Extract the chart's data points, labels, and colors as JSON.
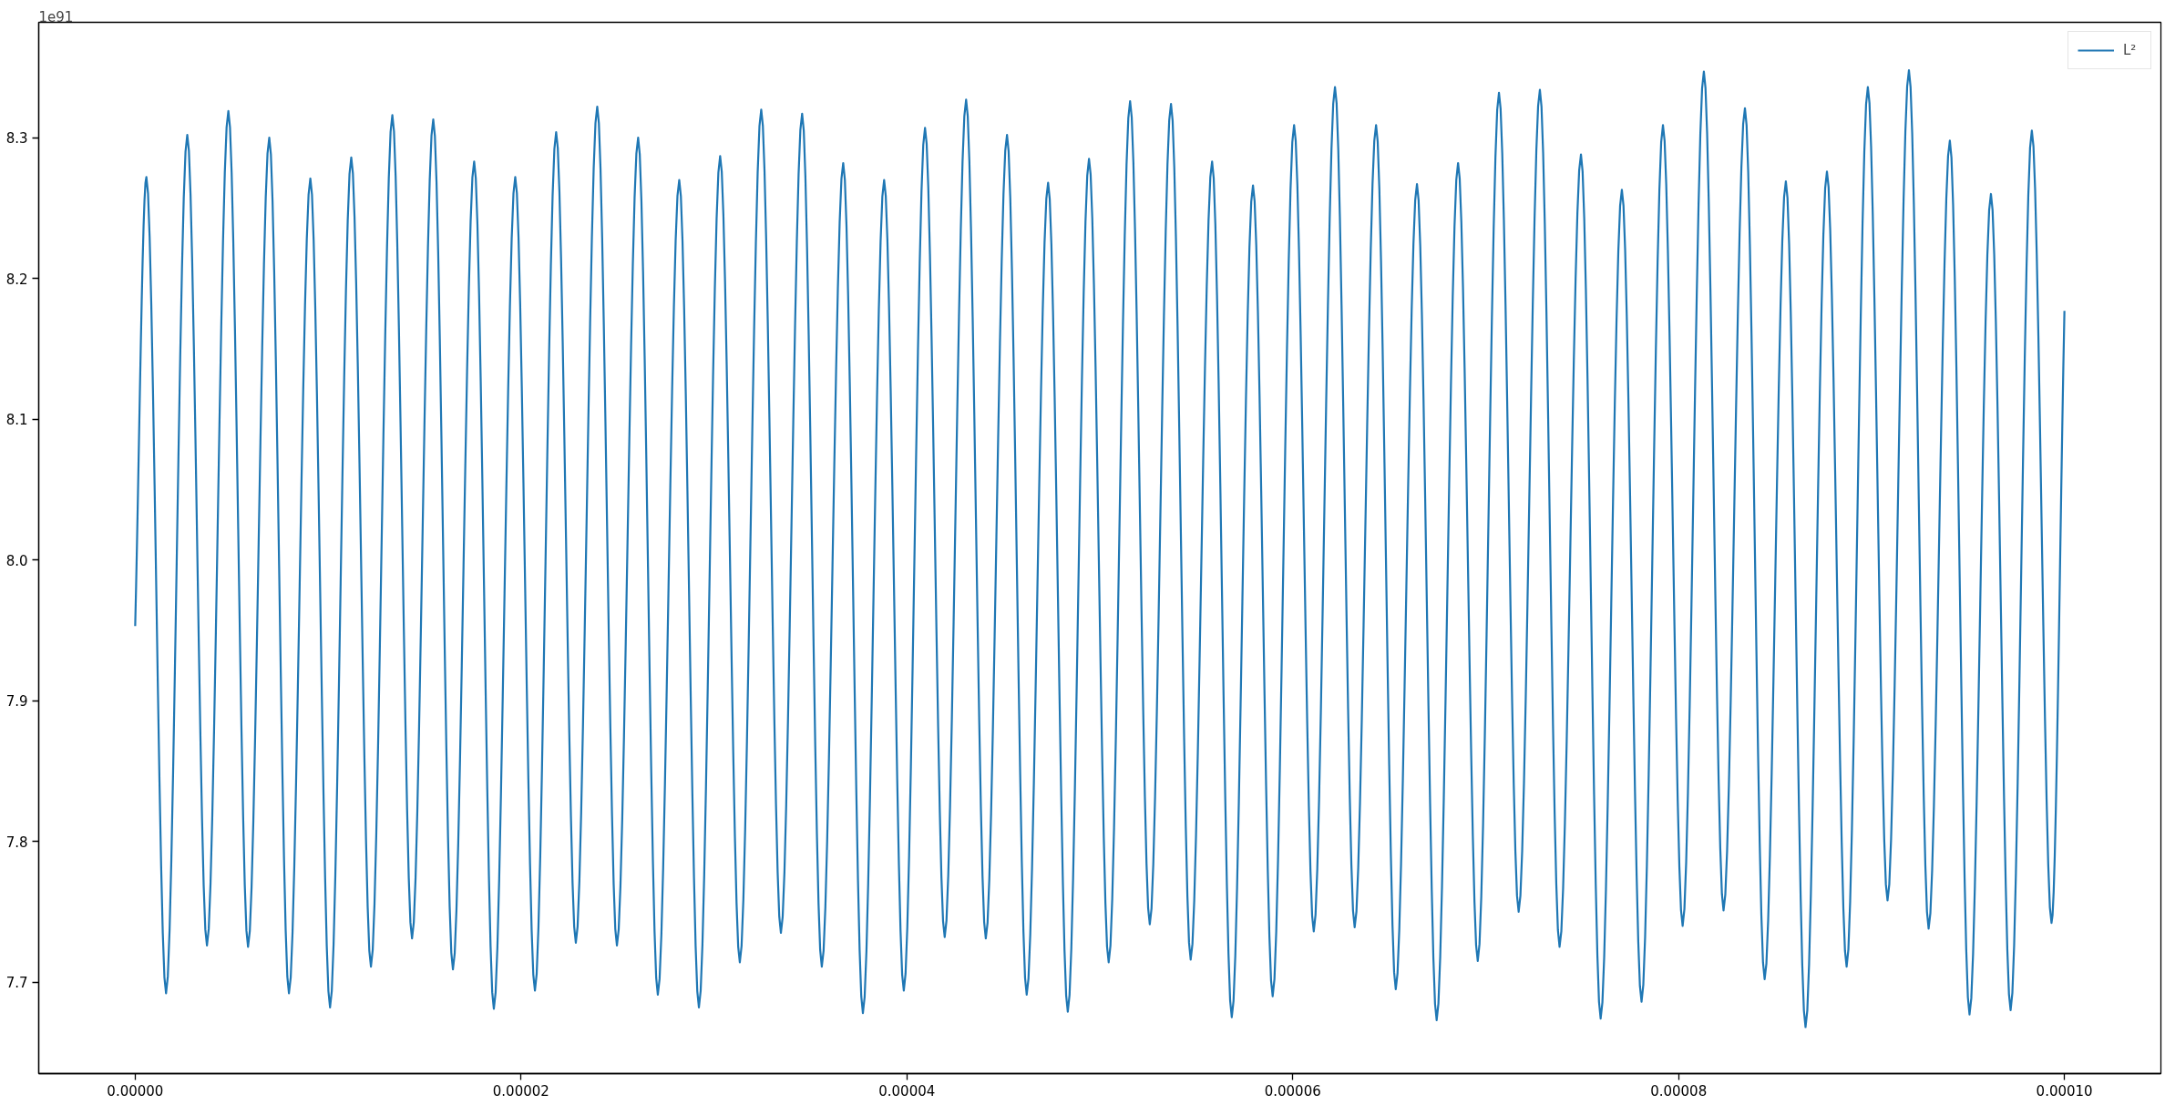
{
  "chart_data": {
    "type": "line",
    "annotations": [
      "1e91"
    ],
    "x": [
      0,
      5.8e-07,
      1.6e-06,
      2.7e-06,
      3.72e-06,
      4.83e-06,
      5.85e-06,
      6.95e-06,
      7.97e-06,
      9.08e-06,
      1.01e-05,
      1.12e-05,
      1.222e-05,
      1.333e-05,
      1.435e-05,
      1.545e-05,
      1.647e-05,
      1.757e-05,
      1.859e-05,
      1.97e-05,
      2.072e-05,
      2.182e-05,
      2.284e-05,
      2.395e-05,
      2.497e-05,
      2.607e-05,
      2.709e-05,
      2.82e-05,
      2.922e-05,
      3.032e-05,
      3.134e-05,
      3.245e-05,
      3.347e-05,
      3.457e-05,
      3.559e-05,
      3.67e-05,
      3.772e-05,
      3.882e-05,
      3.984e-05,
      4.094e-05,
      4.196e-05,
      4.307e-05,
      4.409e-05,
      4.519e-05,
      4.621e-05,
      4.732e-05,
      4.834e-05,
      4.944e-05,
      5.046e-05,
      5.157e-05,
      5.259e-05,
      5.369e-05,
      5.471e-05,
      5.582e-05,
      5.684e-05,
      5.794e-05,
      5.896e-05,
      6.007e-05,
      6.109e-05,
      6.219e-05,
      6.321e-05,
      6.432e-05,
      6.534e-05,
      6.644e-05,
      6.746e-05,
      6.857e-05,
      6.959e-05,
      7.069e-05,
      7.171e-05,
      7.281e-05,
      7.383e-05,
      7.494e-05,
      7.596e-05,
      7.706e-05,
      7.808e-05,
      7.919e-05,
      8.021e-05,
      8.131e-05,
      8.233e-05,
      8.344e-05,
      8.446e-05,
      8.556e-05,
      8.658e-05,
      8.769e-05,
      8.871e-05,
      8.981e-05,
      9.083e-05,
      9.194e-05,
      9.296e-05,
      9.406e-05,
      9.508e-05,
      9.619e-05,
      9.721e-05,
      9.831e-05,
      9.933e-05,
      0.0001
    ],
    "series": [
      {
        "name": "L²",
        "color": "#1f77b4",
        "values": [
          7.953,
          8.272,
          7.692,
          8.302,
          7.726,
          8.319,
          7.725,
          8.3,
          7.692,
          8.271,
          7.682,
          8.286,
          7.711,
          8.316,
          7.731,
          8.313,
          7.709,
          8.283,
          7.681,
          8.272,
          7.694,
          8.304,
          7.728,
          8.322,
          7.726,
          8.3,
          7.691,
          8.27,
          7.682,
          8.287,
          7.714,
          8.32,
          7.735,
          8.317,
          7.711,
          8.282,
          7.678,
          8.27,
          7.694,
          8.307,
          7.732,
          8.327,
          7.731,
          8.302,
          7.691,
          8.268,
          7.679,
          8.285,
          7.714,
          8.326,
          7.741,
          8.324,
          7.716,
          8.283,
          7.675,
          8.266,
          7.69,
          8.309,
          7.736,
          8.336,
          7.739,
          8.309,
          7.695,
          8.267,
          7.673,
          8.282,
          7.715,
          8.332,
          7.75,
          8.334,
          7.725,
          8.288,
          7.674,
          8.263,
          7.686,
          8.309,
          7.74,
          8.347,
          7.751,
          8.321,
          7.702,
          8.269,
          7.668,
          8.276,
          7.711,
          8.336,
          7.758,
          8.348,
          7.738,
          8.298,
          7.677,
          8.26,
          7.68,
          8.305,
          7.742,
          8.177
        ]
      }
    ],
    "xlim": [
      -5e-06,
      0.000105
    ],
    "xticks": [
      {
        "value": 0,
        "label": "0.00000"
      },
      {
        "value": 2e-05,
        "label": "0.00002"
      },
      {
        "value": 4e-05,
        "label": "0.00004"
      },
      {
        "value": 6e-05,
        "label": "0.00006"
      },
      {
        "value": 8e-05,
        "label": "0.00008"
      },
      {
        "value": 0.0001,
        "label": "0.00010"
      }
    ],
    "ylim": [
      7.635,
      8.382
    ],
    "yticks": [
      7.7,
      7.8,
      7.9,
      {
        "value": 8.0,
        "label": "8.0"
      },
      8.1,
      8.2,
      8.3
    ],
    "legend": "top right"
  }
}
